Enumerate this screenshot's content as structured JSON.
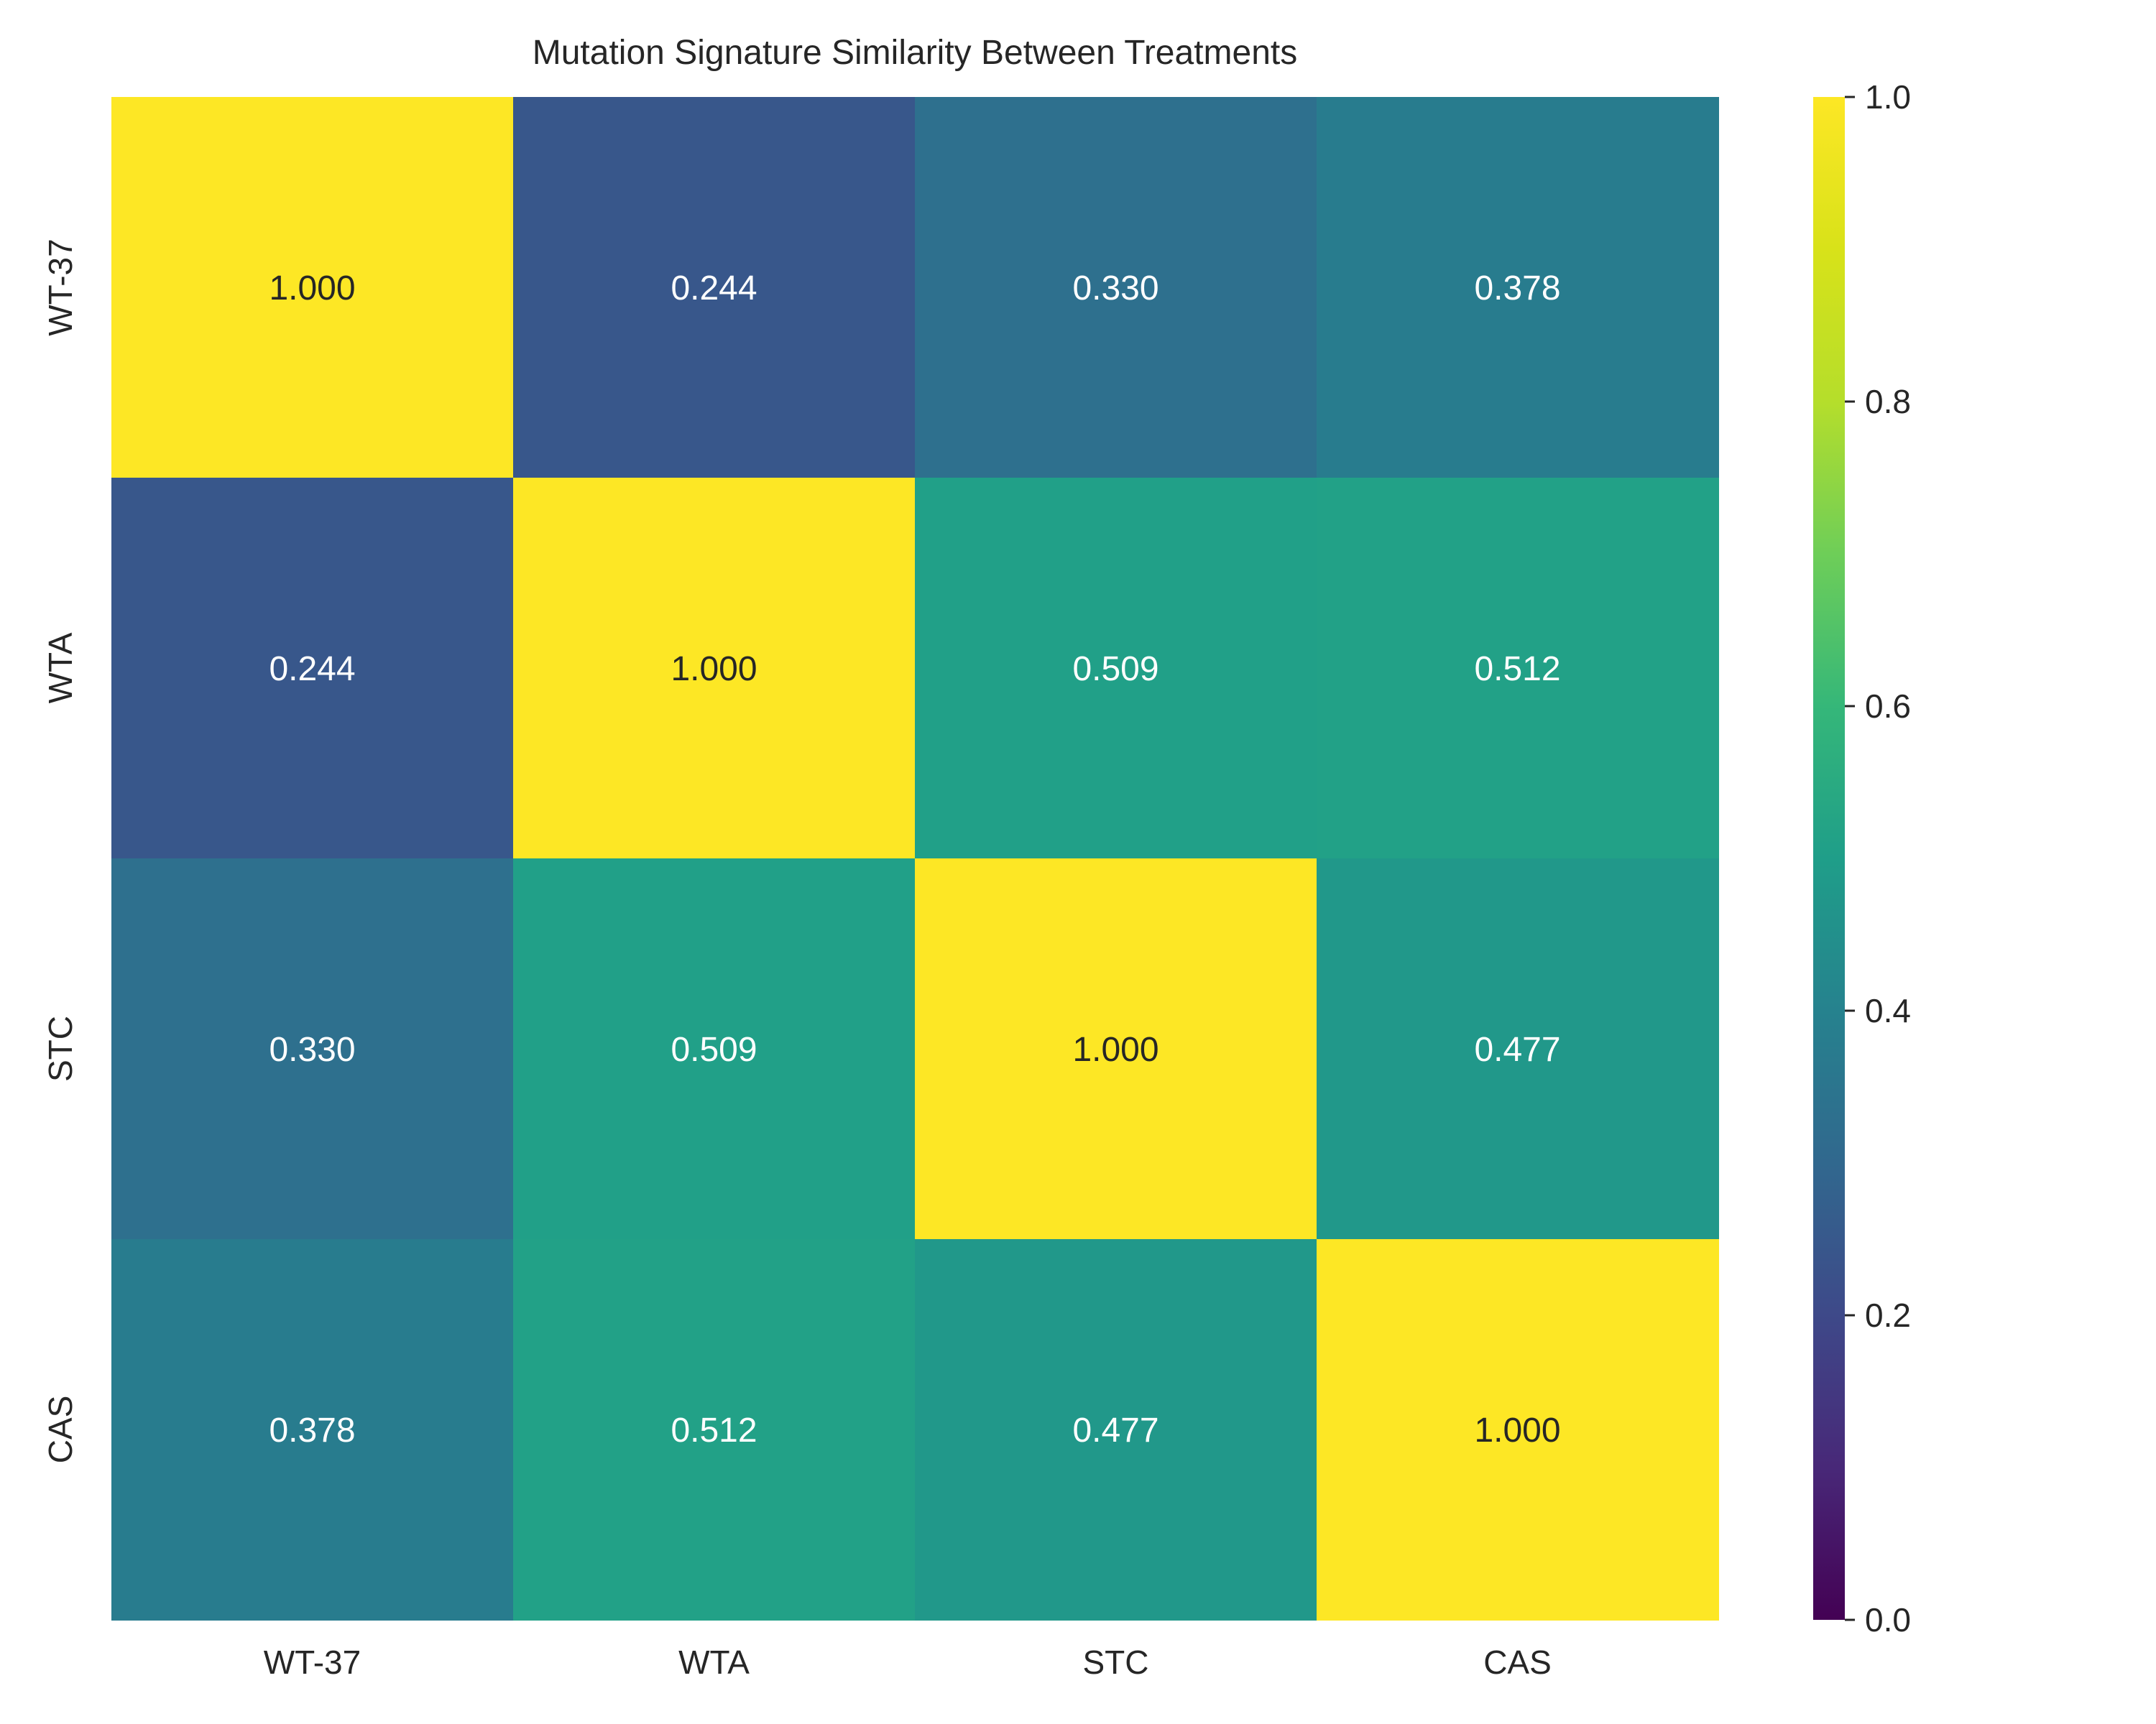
{
  "chart_data": {
    "type": "heatmap",
    "title": "Mutation Signature Similarity Between Treatments",
    "xlabel": "",
    "ylabel": "",
    "x_categories": [
      "WT-37",
      "WTA",
      "STC",
      "CAS"
    ],
    "y_categories": [
      "WT-37",
      "WTA",
      "STC",
      "CAS"
    ],
    "values": [
      [
        1.0,
        0.244,
        0.33,
        0.378
      ],
      [
        0.244,
        1.0,
        0.509,
        0.512
      ],
      [
        0.33,
        0.509,
        1.0,
        0.477
      ],
      [
        0.378,
        0.512,
        0.477,
        1.0
      ]
    ],
    "value_format": "3 decimals",
    "colormap": "viridis",
    "vmin": 0.0,
    "vmax": 1.0,
    "colorbar_ticks": [
      "0.0",
      "0.2",
      "0.4",
      "0.6",
      "0.8",
      "1.0"
    ],
    "grid": false,
    "legend": "colorbar-right"
  }
}
